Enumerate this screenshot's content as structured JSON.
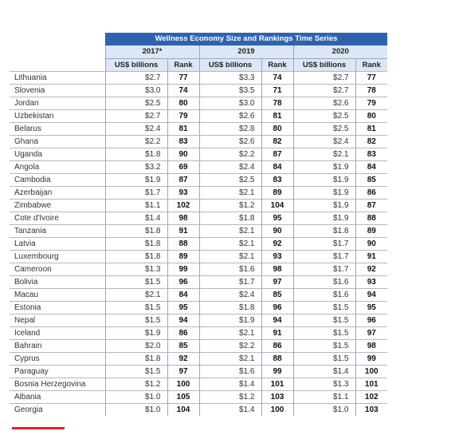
{
  "table": {
    "title": "Wellness Economy Size and Rankings Time Series",
    "years": [
      "2017*",
      "2019",
      "2020"
    ],
    "subheaders": [
      "US$ billions",
      "Rank",
      "US$ billions",
      "Rank",
      "US$ billions",
      "Rank"
    ],
    "rows": [
      {
        "country": "Lithuania",
        "b2017": "$2.7",
        "r2017": "77",
        "b2019": "$3.3",
        "r2019": "74",
        "b2020": "$2.7",
        "r2020": "77"
      },
      {
        "country": "Slovenia",
        "b2017": "$3.0",
        "r2017": "74",
        "b2019": "$3.5",
        "r2019": "71",
        "b2020": "$2.7",
        "r2020": "78"
      },
      {
        "country": "Jordan",
        "b2017": "$2.5",
        "r2017": "80",
        "b2019": "$3.0",
        "r2019": "78",
        "b2020": "$2.6",
        "r2020": "79"
      },
      {
        "country": "Uzbekistan",
        "b2017": "$2.7",
        "r2017": "79",
        "b2019": "$2.6",
        "r2019": "81",
        "b2020": "$2.5",
        "r2020": "80"
      },
      {
        "country": "Belarus",
        "b2017": "$2.4",
        "r2017": "81",
        "b2019": "$2.8",
        "r2019": "80",
        "b2020": "$2.5",
        "r2020": "81"
      },
      {
        "country": "Ghana",
        "b2017": "$2.2",
        "r2017": "83",
        "b2019": "$2.6",
        "r2019": "82",
        "b2020": "$2.4",
        "r2020": "82"
      },
      {
        "country": "Uganda",
        "b2017": "$1.8",
        "r2017": "90",
        "b2019": "$2.2",
        "r2019": "87",
        "b2020": "$2.1",
        "r2020": "83"
      },
      {
        "country": "Angola",
        "b2017": "$3.2",
        "r2017": "69",
        "b2019": "$2.4",
        "r2019": "84",
        "b2020": "$1.9",
        "r2020": "84"
      },
      {
        "country": "Cambodia",
        "b2017": "$1.9",
        "r2017": "87",
        "b2019": "$2.5",
        "r2019": "83",
        "b2020": "$1.9",
        "r2020": "85"
      },
      {
        "country": "Azerbaijan",
        "b2017": "$1.7",
        "r2017": "93",
        "b2019": "$2.1",
        "r2019": "89",
        "b2020": "$1.9",
        "r2020": "86"
      },
      {
        "country": "Zimbabwe",
        "b2017": "$1.1",
        "r2017": "102",
        "b2019": "$1.2",
        "r2019": "104",
        "b2020": "$1.9",
        "r2020": "87"
      },
      {
        "country": "Cote d'Ivoire",
        "b2017": "$1.4",
        "r2017": "98",
        "b2019": "$1.8",
        "r2019": "95",
        "b2020": "$1.9",
        "r2020": "88"
      },
      {
        "country": "Tanzania",
        "b2017": "$1.8",
        "r2017": "91",
        "b2019": "$2.1",
        "r2019": "90",
        "b2020": "$1.8",
        "r2020": "89"
      },
      {
        "country": "Latvia",
        "b2017": "$1.8",
        "r2017": "88",
        "b2019": "$2.1",
        "r2019": "92",
        "b2020": "$1.7",
        "r2020": "90"
      },
      {
        "country": "Luxembourg",
        "b2017": "$1.8",
        "r2017": "89",
        "b2019": "$2.1",
        "r2019": "93",
        "b2020": "$1.7",
        "r2020": "91"
      },
      {
        "country": "Cameroon",
        "b2017": "$1.3",
        "r2017": "99",
        "b2019": "$1.6",
        "r2019": "98",
        "b2020": "$1.7",
        "r2020": "92"
      },
      {
        "country": "Bolivia",
        "b2017": "$1.5",
        "r2017": "96",
        "b2019": "$1.7",
        "r2019": "97",
        "b2020": "$1.6",
        "r2020": "93"
      },
      {
        "country": "Macau",
        "b2017": "$2.1",
        "r2017": "84",
        "b2019": "$2.4",
        "r2019": "85",
        "b2020": "$1.6",
        "r2020": "94"
      },
      {
        "country": "Estonia",
        "b2017": "$1.5",
        "r2017": "95",
        "b2019": "$1.8",
        "r2019": "96",
        "b2020": "$1.5",
        "r2020": "95"
      },
      {
        "country": "Nepal",
        "b2017": "$1.5",
        "r2017": "94",
        "b2019": "$1.9",
        "r2019": "94",
        "b2020": "$1.5",
        "r2020": "96"
      },
      {
        "country": "Iceland",
        "b2017": "$1.9",
        "r2017": "86",
        "b2019": "$2.1",
        "r2019": "91",
        "b2020": "$1.5",
        "r2020": "97"
      },
      {
        "country": "Bahrain",
        "b2017": "$2.0",
        "r2017": "85",
        "b2019": "$2.2",
        "r2019": "86",
        "b2020": "$1.5",
        "r2020": "98"
      },
      {
        "country": "Cyprus",
        "b2017": "$1.8",
        "r2017": "92",
        "b2019": "$2.1",
        "r2019": "88",
        "b2020": "$1.5",
        "r2020": "99"
      },
      {
        "country": "Paraguay",
        "b2017": "$1.5",
        "r2017": "97",
        "b2019": "$1.6",
        "r2019": "99",
        "b2020": "$1.4",
        "r2020": "100"
      },
      {
        "country": "Bosnia Herzegovina",
        "b2017": "$1.2",
        "r2017": "100",
        "b2019": "$1.4",
        "r2019": "101",
        "b2020": "$1.3",
        "r2020": "101"
      },
      {
        "country": "Albania",
        "b2017": "$1.0",
        "r2017": "105",
        "b2019": "$1.2",
        "r2019": "103",
        "b2020": "$1.1",
        "r2020": "102"
      },
      {
        "country": "Georgia",
        "b2017": "$1.0",
        "r2017": "104",
        "b2019": "$1.4",
        "r2019": "100",
        "b2020": "$1.0",
        "r2020": "103"
      }
    ]
  },
  "colors": {
    "title_bg": "#2f63b0",
    "header_bg": "#dce6f4",
    "highlight_underline": "#e0232b"
  }
}
